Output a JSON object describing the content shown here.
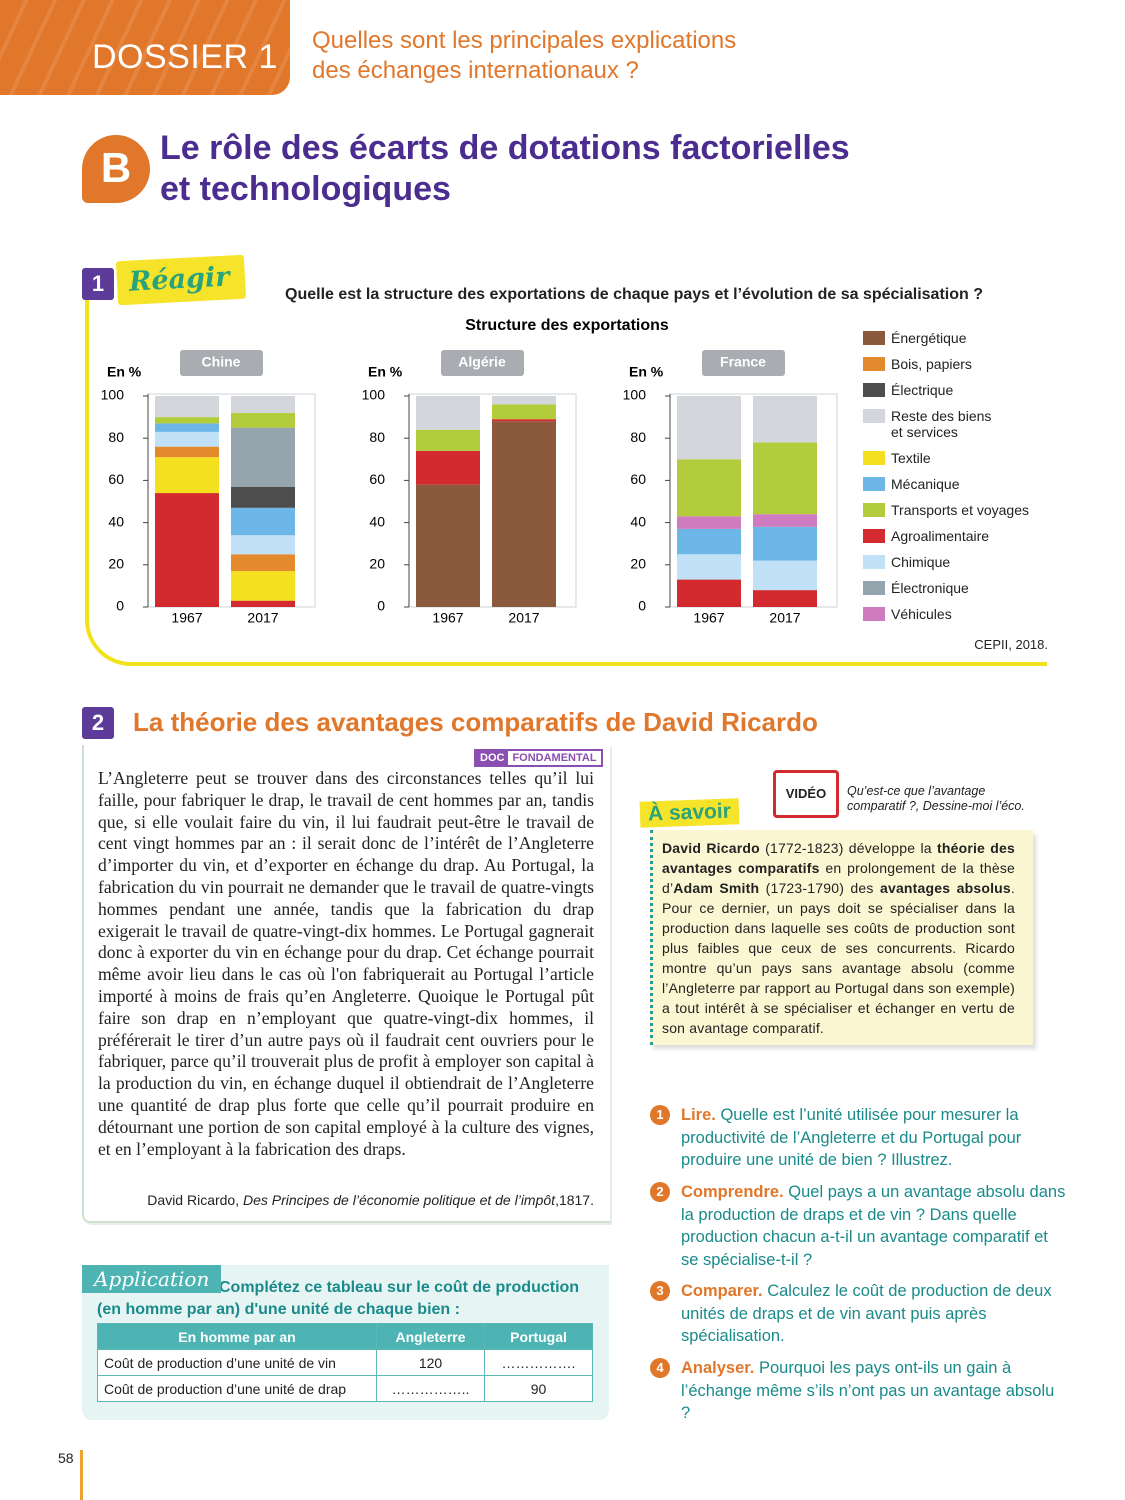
{
  "header": {
    "dossier": "DOSSIER 1",
    "question": "Quelles sont les principales explications des échanges internationaux ?"
  },
  "section": {
    "letter": "B",
    "title": "Le rôle des écarts de dotations factorielles et technologiques"
  },
  "doc1": {
    "number": "1",
    "tag": "Réagir",
    "question": "Quelle est la structure des exportations de chaque pays et l’évolution de sa spécialisation ?",
    "source": "CEPII, 2018."
  },
  "chart_data": {
    "type": "bar",
    "stacked": true,
    "title": "Structure des exportations",
    "groups": [
      "Chine",
      "Algérie",
      "France"
    ],
    "categories": [
      "1967",
      "2017",
      "1967",
      "2017",
      "1967",
      "2017"
    ],
    "y_label": "En %",
    "ylim": [
      0,
      100
    ],
    "yticks": [
      0,
      20,
      40,
      60,
      80,
      100
    ],
    "series": [
      {
        "name": "Énergétique",
        "color": "#8b5a3c",
        "values": [
          null,
          null,
          58,
          88,
          null,
          null
        ]
      },
      {
        "name": "Bois, papiers",
        "color": "#e38b2c",
        "values": [
          5,
          8,
          null,
          null,
          null,
          null
        ]
      },
      {
        "name": "Électrique",
        "color": "#4d4d4d",
        "values": [
          null,
          10,
          null,
          null,
          null,
          null
        ]
      },
      {
        "name": "Reste des biens et services",
        "color": "#d3d7dc",
        "values": [
          10,
          8,
          16,
          4,
          30,
          22
        ]
      },
      {
        "name": "Textile",
        "color": "#f4e01e",
        "values": [
          17,
          14,
          null,
          null,
          null,
          null
        ]
      },
      {
        "name": "Mécanique",
        "color": "#6cb6e8",
        "values": [
          4,
          13,
          null,
          null,
          12,
          16
        ]
      },
      {
        "name": "Transports et voyages",
        "color": "#b3cc3c",
        "values": [
          3,
          7,
          10,
          7,
          27,
          34
        ]
      },
      {
        "name": "Agroalimentaire",
        "color": "#d32a2f",
        "values": [
          54,
          3,
          16,
          1,
          13,
          8
        ]
      },
      {
        "name": "Chimique",
        "color": "#c0e1f6",
        "values": [
          7,
          9,
          null,
          null,
          12,
          14
        ]
      },
      {
        "name": "Électronique",
        "color": "#96a4ad",
        "values": [
          null,
          28,
          null,
          null,
          null,
          null
        ]
      },
      {
        "name": "Véhicules",
        "color": "#cf7bbf",
        "values": [
          null,
          null,
          null,
          null,
          6,
          6
        ]
      }
    ]
  },
  "doc2": {
    "number": "2",
    "title": "La théorie des avantages comparatifs de David Ricardo",
    "badge": [
      "DOC",
      "FONDAMENTAL"
    ],
    "text": "L’Angleterre peut se trouver dans des circonstances telles qu’il lui faille, pour fabriquer le drap, le travail de cent hommes par an, tandis que, si elle voulait faire du vin, il lui faudrait peut-être le travail de cent vingt hommes par an : il serait donc de l’intérêt de l’Angleterre d’importer du vin, et d’exporter en échange du drap. Au Portugal, la fabrication du vin pourrait ne demander que le travail de quatre-vingts hommes pendant une année, tandis que la fabrication du drap exigerait le travail de quatre-vingt-dix hommes. Le Portugal gagnerait donc à exporter du vin en échange pour du drap. Cet échange pourrait même avoir lieu dans le cas où l'on fabriquerait au Portugal l’article importé à moins de frais qu’en Angleterre. Quoique le Portugal pût faire son drap en n’employant que quatre-vingt-dix hommes, il préférerait le tirer d’un autre pays où il faudrait cent ouvriers pour le fabriquer, parce qu’il trouverait plus de profit à employer son capital à la production du vin, en échange duquel il obtiendrait de l’Angleterre une quantité de drap plus forte que celle qu’il pourrait produire en détournant une portion de son capital employé à la culture des vignes, et en l’employant à la fabrication des draps.",
    "source_author": "David Ricardo, ",
    "source_work": "Des Principes de l’économie politique et de l’impôt",
    "source_year": ",1817."
  },
  "savoir": {
    "video": "VIDÉO",
    "video_caption": "Qu’est-ce que l’avantage comparatif ?, Dessine-moi l’éco.",
    "title": "À savoir",
    "segments": [
      "David Ricardo",
      " (1772-1823) développe la ",
      "théorie des avantages comparatifs",
      " en prolongement de la thèse d’",
      "Adam Smith",
      " (1723-1790) des ",
      "avantages absolus",
      ". Pour ce dernier, un pays doit se spécialiser dans la production dans laquelle ses coûts de production sont plus faibles que ceux de ses concurrents. Ricardo montre qu’un pays sans avantage absolu (comme l’Angleterre par rapport au Portugal dans son exemple) a tout intérêt à se spécialiser et échanger en vertu de son avantage comparatif."
    ]
  },
  "questions": [
    {
      "num": "1",
      "verb": "Lire.",
      "text": "Quelle est l’unité utilisée pour mesurer la productivité de l’Angleterre et du Portugal pour produire une unité de bien ? Illustrez."
    },
    {
      "num": "2",
      "verb": "Comprendre.",
      "text": "Quel pays a un avantage absolu dans la production de draps et de vin ? Dans quelle production chacun a-t-il un avantage comparatif et se spécialise-t-il ?"
    },
    {
      "num": "3",
      "verb": "Comparer.",
      "text": "Calculez le coût de production de deux unités de draps et de vin avant puis après spécialisation."
    },
    {
      "num": "4",
      "verb": "Analyser.",
      "text": "Pourquoi les pays ont-ils un gain à l’échange même s’ils n’ont pas un avantage absolu ?"
    }
  ],
  "application": {
    "tag": "Application",
    "instruction": "Complétez ce tableau sur le coût de production (en homme par an) d'une unité de chaque bien :",
    "table": {
      "header": [
        "En homme par an",
        "Angleterre",
        "Portugal"
      ],
      "rows": [
        [
          "Coût de production d’une unité de vin",
          120,
          "……………."
        ],
        [
          "Coût de production d’une unité de drap",
          "……………..",
          90
        ]
      ]
    }
  },
  "page_number": 58
}
